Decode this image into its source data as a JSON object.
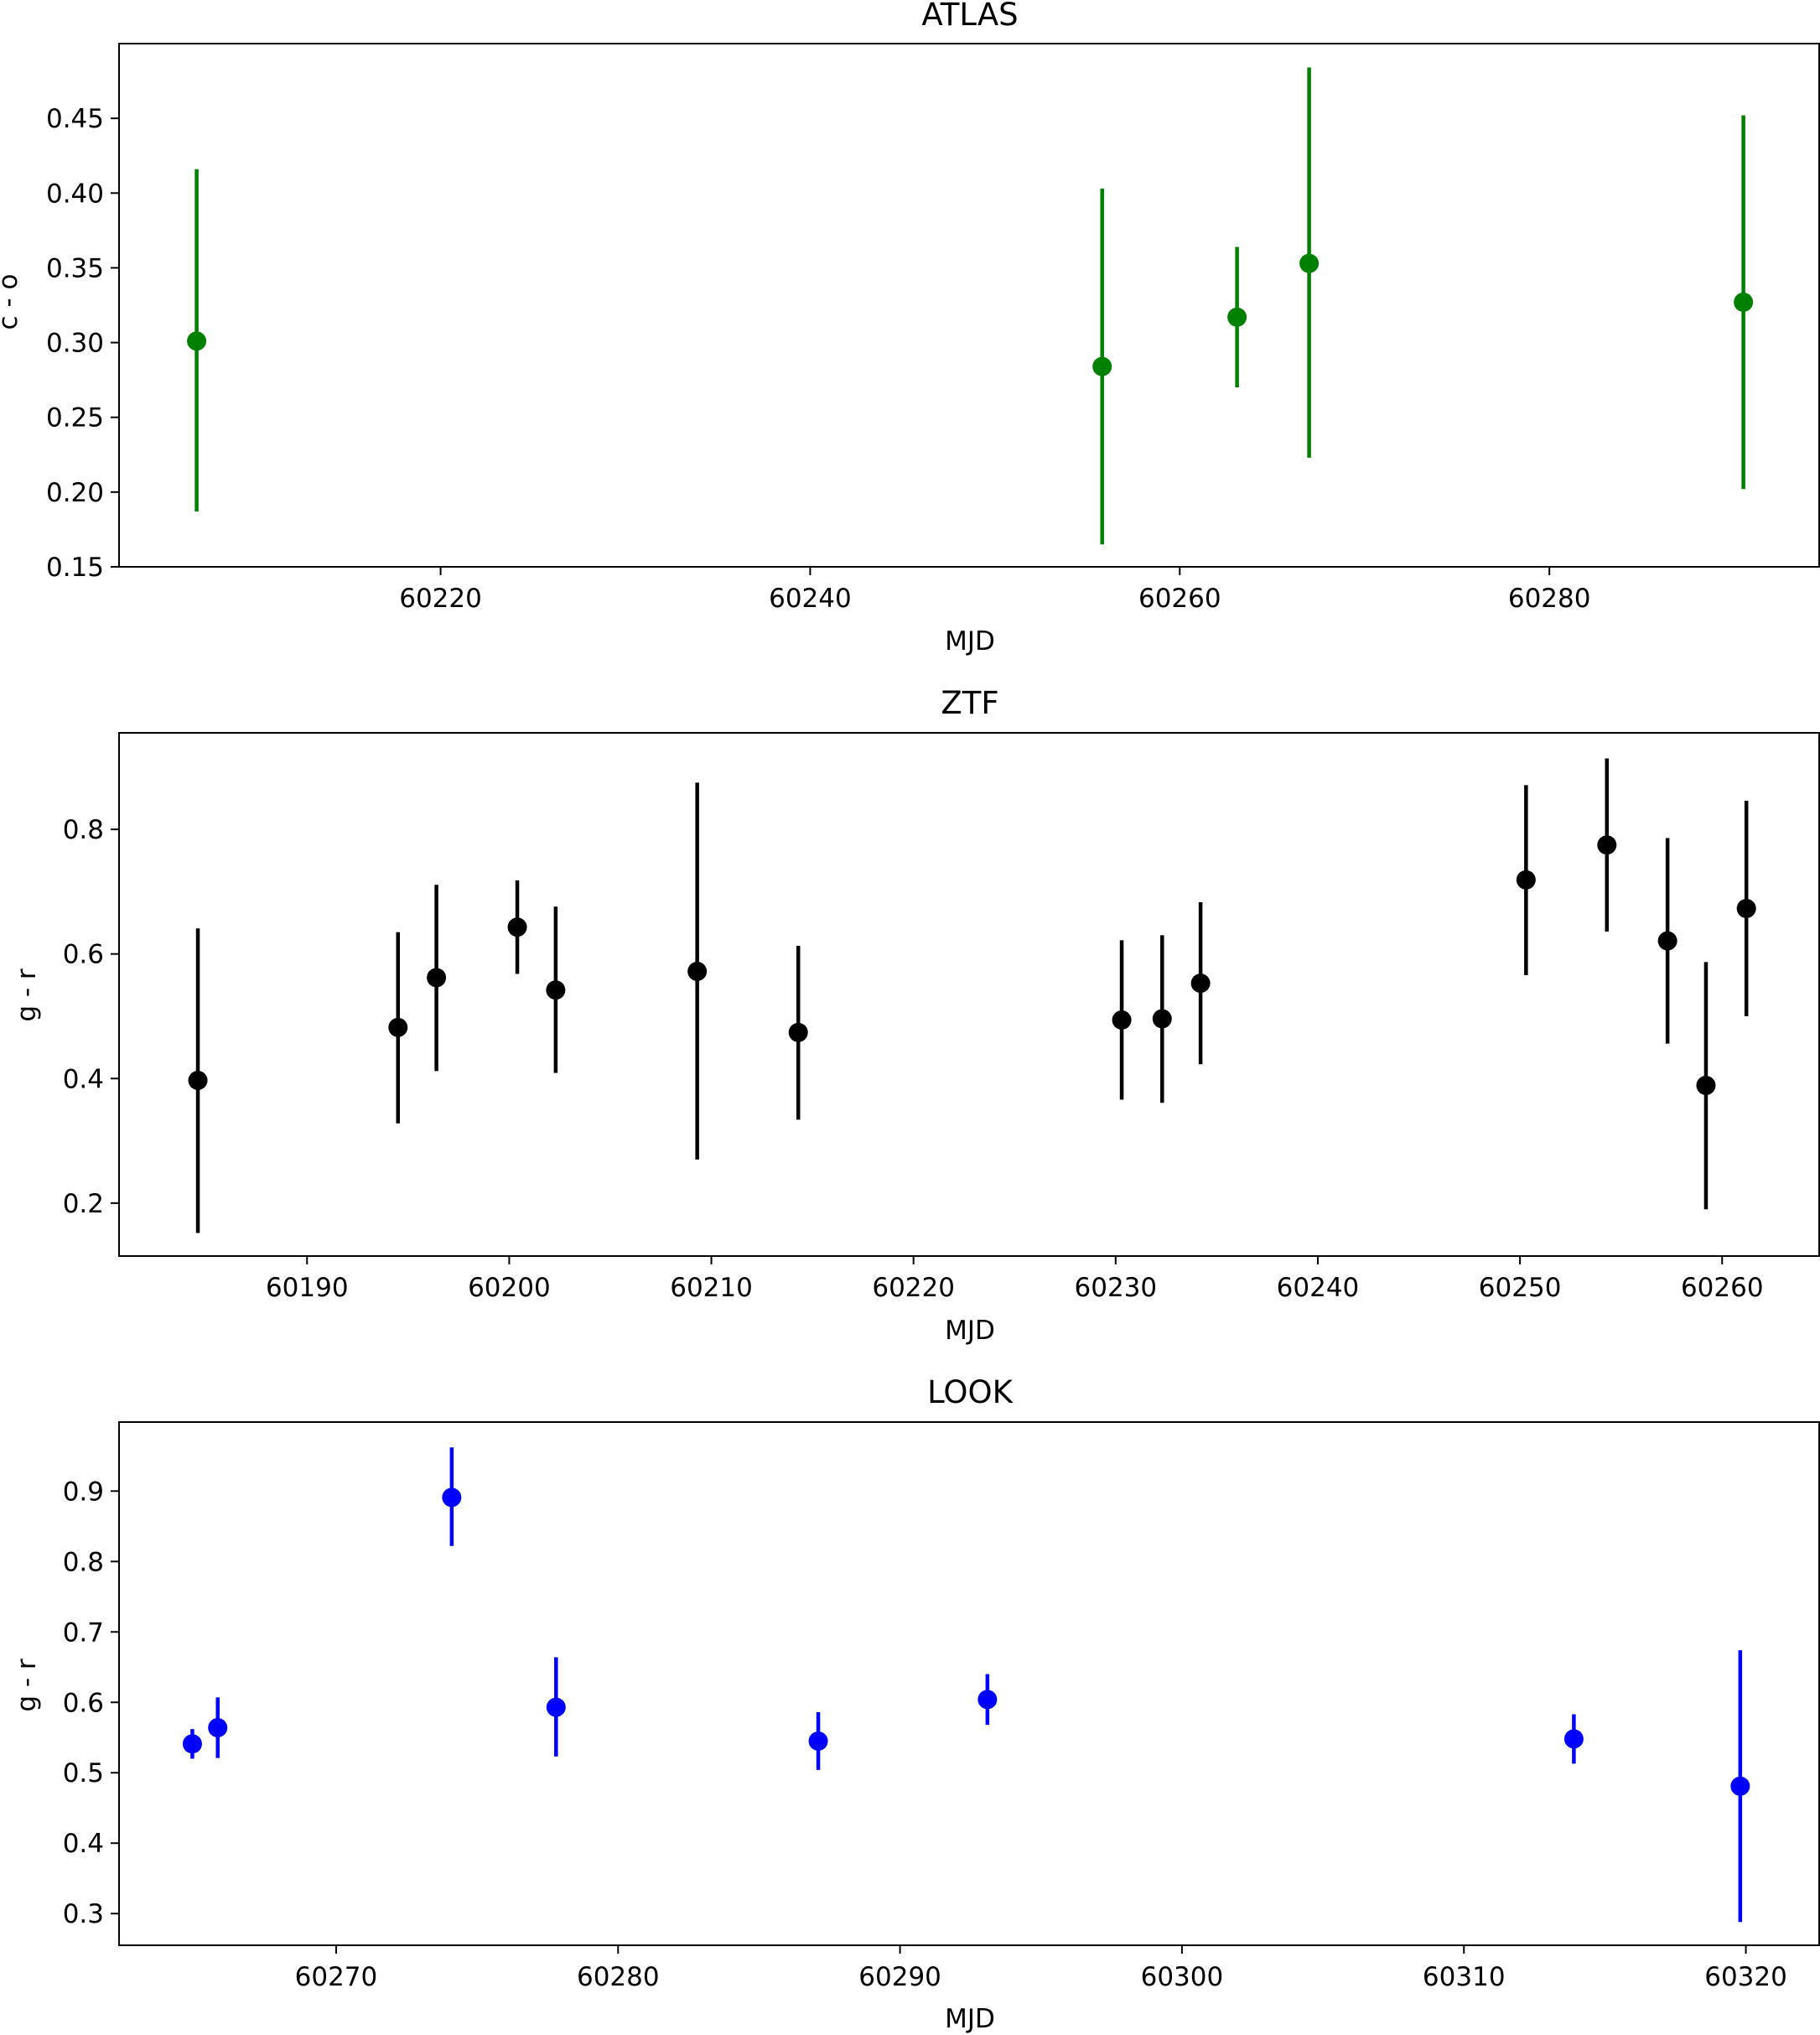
{
  "chart_data": [
    {
      "type": "scatter",
      "title": "ATLAS",
      "xlabel": "MJD",
      "ylabel": "c - o",
      "color": "#008000",
      "xlim": [
        60202.6,
        60294.6
      ],
      "ylim": [
        0.15,
        0.5
      ],
      "xticks": [
        60220,
        60240,
        60260,
        60280
      ],
      "yticks": [
        0.15,
        0.2,
        0.25,
        0.3,
        0.35,
        0.4,
        0.45
      ],
      "ytick_decimals": 2,
      "points": [
        {
          "x": 60206.8,
          "y": 0.301,
          "yerr_low": 0.187,
          "yerr_high": 0.416
        },
        {
          "x": 60255.8,
          "y": 0.284,
          "yerr_low": 0.165,
          "yerr_high": 0.403
        },
        {
          "x": 60263.1,
          "y": 0.317,
          "yerr_low": 0.27,
          "yerr_high": 0.364
        },
        {
          "x": 60267.0,
          "y": 0.353,
          "yerr_low": 0.223,
          "yerr_high": 0.484
        },
        {
          "x": 60290.5,
          "y": 0.327,
          "yerr_low": 0.202,
          "yerr_high": 0.452
        }
      ]
    },
    {
      "type": "scatter",
      "title": "ZTF",
      "xlabel": "MJD",
      "ylabel": "g - r",
      "color": "#000000",
      "xlim": [
        60180.7,
        60264.8
      ],
      "ylim": [
        0.115,
        0.955
      ],
      "xticks": [
        60190,
        60200,
        60210,
        60220,
        60230,
        60240,
        60250,
        60260
      ],
      "yticks": [
        0.2,
        0.4,
        0.6,
        0.8
      ],
      "ytick_decimals": 1,
      "points": [
        {
          "x": 60184.6,
          "y": 0.397,
          "yerr_low": 0.152,
          "yerr_high": 0.641
        },
        {
          "x": 60194.5,
          "y": 0.482,
          "yerr_low": 0.328,
          "yerr_high": 0.635
        },
        {
          "x": 60196.4,
          "y": 0.562,
          "yerr_low": 0.412,
          "yerr_high": 0.711
        },
        {
          "x": 60200.4,
          "y": 0.643,
          "yerr_low": 0.568,
          "yerr_high": 0.718
        },
        {
          "x": 60202.3,
          "y": 0.542,
          "yerr_low": 0.409,
          "yerr_high": 0.676
        },
        {
          "x": 60209.3,
          "y": 0.572,
          "yerr_low": 0.27,
          "yerr_high": 0.875
        },
        {
          "x": 60214.3,
          "y": 0.474,
          "yerr_low": 0.334,
          "yerr_high": 0.613
        },
        {
          "x": 60230.3,
          "y": 0.494,
          "yerr_low": 0.366,
          "yerr_high": 0.622
        },
        {
          "x": 60232.3,
          "y": 0.496,
          "yerr_low": 0.361,
          "yerr_high": 0.63
        },
        {
          "x": 60234.2,
          "y": 0.553,
          "yerr_low": 0.423,
          "yerr_high": 0.683
        },
        {
          "x": 60250.3,
          "y": 0.719,
          "yerr_low": 0.566,
          "yerr_high": 0.871
        },
        {
          "x": 60254.3,
          "y": 0.775,
          "yerr_low": 0.636,
          "yerr_high": 0.914
        },
        {
          "x": 60257.3,
          "y": 0.621,
          "yerr_low": 0.456,
          "yerr_high": 0.786
        },
        {
          "x": 60259.2,
          "y": 0.389,
          "yerr_low": 0.19,
          "yerr_high": 0.587
        },
        {
          "x": 60261.2,
          "y": 0.673,
          "yerr_low": 0.5,
          "yerr_high": 0.846
        }
      ]
    },
    {
      "type": "scatter",
      "title": "LOOK",
      "xlabel": "MJD",
      "ylabel": "g - r",
      "color": "#0000ff",
      "xlim": [
        60262.3,
        60322.6
      ],
      "ylim": [
        0.255,
        0.998
      ],
      "xticks": [
        60270,
        60280,
        60290,
        60300,
        60310,
        60320
      ],
      "yticks": [
        0.3,
        0.4,
        0.5,
        0.6,
        0.7,
        0.8,
        0.9
      ],
      "ytick_decimals": 1,
      "points": [
        {
          "x": 60264.9,
          "y": 0.541,
          "yerr_low": 0.52,
          "yerr_high": 0.562
        },
        {
          "x": 60265.8,
          "y": 0.564,
          "yerr_low": 0.521,
          "yerr_high": 0.607
        },
        {
          "x": 60274.1,
          "y": 0.891,
          "yerr_low": 0.822,
          "yerr_high": 0.962
        },
        {
          "x": 60277.8,
          "y": 0.593,
          "yerr_low": 0.523,
          "yerr_high": 0.664
        },
        {
          "x": 60287.1,
          "y": 0.545,
          "yerr_low": 0.504,
          "yerr_high": 0.586
        },
        {
          "x": 60293.1,
          "y": 0.604,
          "yerr_low": 0.568,
          "yerr_high": 0.64
        },
        {
          "x": 60313.9,
          "y": 0.548,
          "yerr_low": 0.513,
          "yerr_high": 0.583
        },
        {
          "x": 60319.8,
          "y": 0.481,
          "yerr_low": 0.288,
          "yerr_high": 0.674
        }
      ]
    }
  ]
}
